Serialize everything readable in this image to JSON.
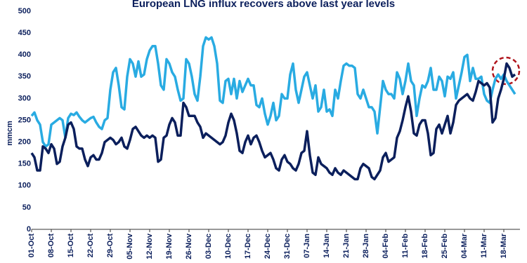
{
  "chart_data": {
    "type": "line",
    "title": "European LNG influx recovers above last year levels",
    "y_label": "mmcm",
    "categories": [
      "01-Oct",
      null,
      null,
      null,
      null,
      null,
      null,
      "08-Oct",
      null,
      null,
      null,
      null,
      null,
      null,
      "15-Oct",
      null,
      null,
      null,
      null,
      null,
      null,
      "22-Oct",
      null,
      null,
      null,
      null,
      null,
      null,
      "29-Oct",
      null,
      null,
      null,
      null,
      null,
      null,
      "05-Nov",
      null,
      null,
      null,
      null,
      null,
      null,
      "12-Nov",
      null,
      null,
      null,
      null,
      null,
      null,
      "19-Nov",
      null,
      null,
      null,
      null,
      null,
      null,
      "26-Nov",
      null,
      null,
      null,
      null,
      null,
      null,
      "03-Dec",
      null,
      null,
      null,
      null,
      null,
      null,
      "10-Dec",
      null,
      null,
      null,
      null,
      null,
      null,
      "17-Dec",
      null,
      null,
      null,
      null,
      null,
      null,
      "24-Dec",
      null,
      null,
      null,
      null,
      null,
      null,
      "31-Dec",
      null,
      null,
      null,
      null,
      null,
      null,
      "07-Jan",
      null,
      null,
      null,
      null,
      null,
      null,
      "14-Jan",
      null,
      null,
      null,
      null,
      null,
      null,
      "21-Jan",
      null,
      null,
      null,
      null,
      null,
      null,
      "28-Jan",
      null,
      null,
      null,
      null,
      null,
      null,
      "04-Feb",
      null,
      null,
      null,
      null,
      null,
      null,
      "11-Feb",
      null,
      null,
      null,
      null,
      null,
      null,
      "18-Feb",
      null,
      null,
      null,
      null,
      null,
      null,
      "25-Feb",
      null,
      null,
      null,
      null,
      null,
      null,
      "04-Mar",
      null,
      null,
      null,
      null,
      null,
      null,
      "11-Mar",
      null,
      null,
      null,
      null,
      null,
      null,
      "18-Mar",
      null,
      null,
      null,
      null
    ],
    "series": [
      {
        "color": "#29abe2",
        "values": [
          260,
          268,
          250,
          240,
          200,
          190,
          195,
          240,
          245,
          250,
          255,
          250,
          210,
          255,
          265,
          262,
          268,
          258,
          250,
          245,
          250,
          255,
          258,
          245,
          235,
          230,
          250,
          255,
          320,
          360,
          370,
          330,
          280,
          275,
          350,
          390,
          380,
          350,
          385,
          350,
          355,
          390,
          410,
          420,
          420,
          380,
          330,
          320,
          390,
          380,
          360,
          350,
          320,
          295,
          300,
          390,
          380,
          350,
          310,
          295,
          350,
          420,
          440,
          435,
          440,
          420,
          380,
          295,
          290,
          340,
          345,
          310,
          345,
          300,
          340,
          315,
          330,
          345,
          330,
          330,
          285,
          280,
          300,
          265,
          240,
          260,
          290,
          250,
          260,
          310,
          300,
          300,
          355,
          380,
          320,
          290,
          320,
          350,
          360,
          330,
          300,
          330,
          270,
          280,
          320,
          270,
          275,
          260,
          320,
          300,
          340,
          375,
          380,
          375,
          375,
          370,
          310,
          300,
          320,
          300,
          280,
          280,
          270,
          220,
          280,
          340,
          320,
          310,
          310,
          300,
          360,
          345,
          310,
          340,
          380,
          340,
          330,
          260,
          300,
          330,
          325,
          340,
          370,
          320,
          320,
          350,
          340,
          305,
          350,
          345,
          360,
          300,
          330,
          360,
          395,
          400,
          340,
          370,
          345,
          345,
          350,
          310,
          295,
          290,
          320,
          345,
          355,
          345,
          355,
          340,
          330,
          320,
          310
        ]
      },
      {
        "color": "#0b1f5c",
        "values": [
          175,
          165,
          135,
          135,
          190,
          185,
          175,
          195,
          185,
          150,
          155,
          190,
          210,
          240,
          245,
          230,
          190,
          185,
          185,
          160,
          145,
          165,
          170,
          160,
          160,
          175,
          200,
          205,
          210,
          205,
          195,
          200,
          210,
          190,
          185,
          205,
          230,
          235,
          225,
          215,
          210,
          215,
          210,
          215,
          210,
          155,
          160,
          210,
          215,
          240,
          255,
          245,
          215,
          215,
          290,
          280,
          260,
          260,
          260,
          245,
          235,
          210,
          220,
          215,
          210,
          205,
          200,
          195,
          200,
          215,
          245,
          265,
          250,
          220,
          180,
          175,
          200,
          215,
          195,
          210,
          215,
          200,
          180,
          165,
          170,
          175,
          160,
          140,
          135,
          160,
          170,
          155,
          150,
          140,
          135,
          150,
          175,
          180,
          225,
          170,
          130,
          125,
          165,
          150,
          145,
          140,
          130,
          125,
          140,
          130,
          125,
          135,
          130,
          125,
          120,
          115,
          115,
          140,
          150,
          145,
          140,
          120,
          115,
          125,
          135,
          165,
          175,
          155,
          160,
          165,
          210,
          225,
          250,
          280,
          305,
          270,
          220,
          215,
          240,
          250,
          250,
          220,
          170,
          175,
          230,
          240,
          220,
          240,
          260,
          220,
          245,
          285,
          295,
          300,
          305,
          310,
          300,
          295,
          315,
          340,
          335,
          330,
          335,
          325,
          245,
          255,
          300,
          320,
          345,
          380,
          370,
          350,
          355
        ]
      }
    ],
    "ylim": [
      0,
      500
    ],
    "yticks": [
      0,
      50,
      100,
      150,
      200,
      250,
      300,
      350,
      400,
      450,
      500
    ],
    "grid": false
  }
}
